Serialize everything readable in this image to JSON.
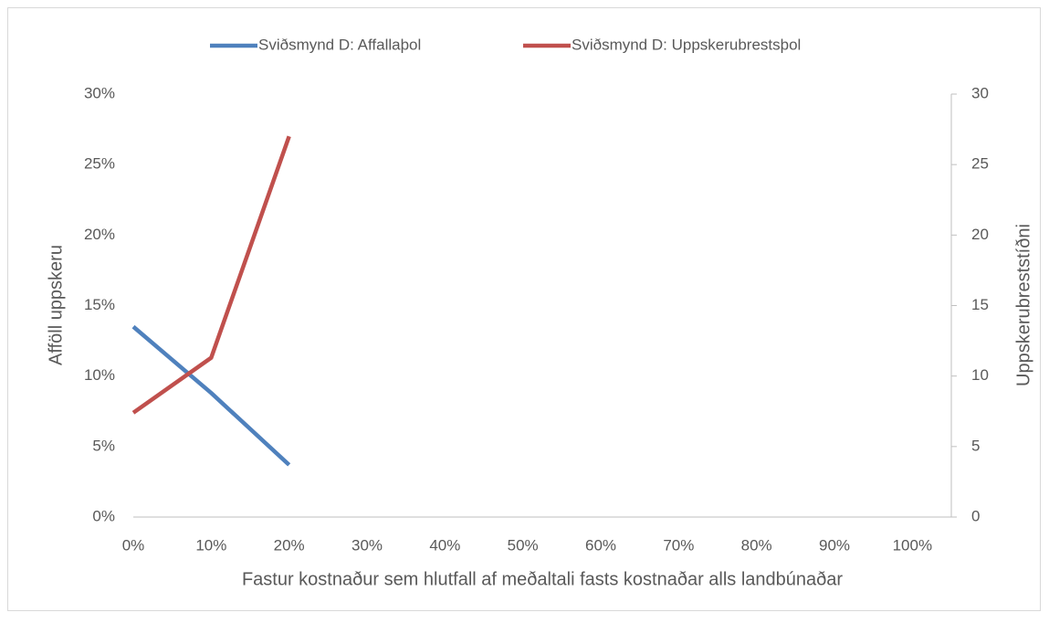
{
  "chart_data": {
    "type": "line",
    "x_label": "Fastur kostnaður sem hlutfall af meðaltali fasts kostnaðar alls landbúnaðar",
    "y_label": "Afföll uppskeru",
    "y2_label": "Uppskerubreststíðni",
    "x": [
      0,
      10,
      20
    ],
    "xlim": [
      0,
      105
    ],
    "xticks": [
      {
        "value": 0,
        "label": "0%"
      },
      {
        "value": 10,
        "label": "10%"
      },
      {
        "value": 20,
        "label": "20%"
      },
      {
        "value": 30,
        "label": "30%"
      },
      {
        "value": 40,
        "label": "40%"
      },
      {
        "value": 50,
        "label": "50%"
      },
      {
        "value": 60,
        "label": "60%"
      },
      {
        "value": 70,
        "label": "70%"
      },
      {
        "value": 80,
        "label": "80%"
      },
      {
        "value": 90,
        "label": "90%"
      },
      {
        "value": 100,
        "label": "100%"
      }
    ],
    "ylim": [
      0,
      30
    ],
    "yticks": [
      {
        "value": 0,
        "label": "0%"
      },
      {
        "value": 5,
        "label": "5%"
      },
      {
        "value": 10,
        "label": "10%"
      },
      {
        "value": 15,
        "label": "15%"
      },
      {
        "value": 20,
        "label": "20%"
      },
      {
        "value": 25,
        "label": "25%"
      },
      {
        "value": 30,
        "label": "30%"
      }
    ],
    "y2lim": [
      0,
      30
    ],
    "y2ticks": [
      0,
      5,
      10,
      15,
      20,
      25,
      30
    ],
    "legend": "top",
    "series": [
      {
        "name": "Sviðsmynd D: Affallaþol",
        "color": "#4f81bd",
        "values": [
          13.5,
          8.8,
          3.7
        ]
      },
      {
        "name": "Sviðsmynd D: Uppskerubrestsþol",
        "color": "#c0504d",
        "values": [
          7.4,
          11.3,
          27.0
        ],
        "axis": "y2"
      }
    ]
  }
}
